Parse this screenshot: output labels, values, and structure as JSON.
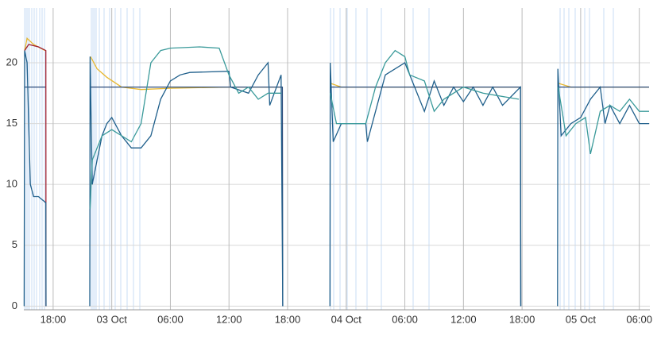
{
  "chart_data": {
    "type": "line",
    "xlim": [
      "02 Oct 15:00",
      "05 Oct 07:05"
    ],
    "xticks": [
      {
        "value": "02 Oct 18:00",
        "label": "18:00"
      },
      {
        "value": "03 Oct 00:00",
        "label": "03 Oct"
      },
      {
        "value": "03 Oct 06:00",
        "label": "06:00"
      },
      {
        "value": "03 Oct 12:00",
        "label": "12:00"
      },
      {
        "value": "03 Oct 18:00",
        "label": "18:00"
      },
      {
        "value": "04 Oct 00:00",
        "label": "04 Oct"
      },
      {
        "value": "04 Oct 06:00",
        "label": "06:00"
      },
      {
        "value": "04 Oct 12:00",
        "label": "12:00"
      },
      {
        "value": "04 Oct 18:00",
        "label": "18:00"
      },
      {
        "value": "05 Oct 00:00",
        "label": "05 Oct"
      },
      {
        "value": "05 Oct 06:00",
        "label": "06:00"
      }
    ],
    "ylim": [
      -0.3,
      24.5
    ],
    "yticks": [
      0,
      5,
      10,
      15,
      20
    ],
    "grid": true,
    "series": [
      {
        "color": "#e8b830",
        "x": [
          "02 Oct 15:05",
          "02 Oct 15:20",
          "02 Oct 16:00",
          "02 Oct 17:10",
          "02 Oct 17:12",
          "02 Oct 21:50",
          "02 Oct 22:30",
          "02 Oct 23:30",
          "03 Oct 01:00",
          "03 Oct 03:00",
          "03 Oct 06:00",
          "03 Oct 12:00",
          "03 Oct 17:20",
          "03 Oct 17:22",
          "03 Oct 22:25",
          "03 Oct 23:30",
          "04 Oct 06:00",
          "04 Oct 12:00",
          "04 Oct 17:40",
          "04 Oct 17:42",
          "04 Oct 21:45",
          "04 Oct 23:00",
          "05 Oct 07:00"
        ],
        "values": [
          21,
          22,
          21.5,
          21,
          null,
          20.5,
          19.5,
          18.8,
          18,
          17.8,
          17.9,
          18,
          18,
          null,
          18.3,
          18,
          18,
          18,
          18,
          null,
          18.3,
          18,
          18
        ]
      },
      {
        "color": "#2a4a7a",
        "x": [
          "02 Oct 15:05",
          "02 Oct 17:15",
          "02 Oct 17:17",
          "02 Oct 21:46",
          "03 Oct 17:28",
          "03 Oct 17:30",
          "03 Oct 17:32",
          "03 Oct 22:21",
          "04 Oct 17:50",
          "04 Oct 17:52",
          "04 Oct 17:54",
          "04 Oct 21:39",
          "05 Oct 07:00"
        ],
        "values": [
          18,
          18,
          null,
          18,
          18,
          0,
          null,
          18,
          18,
          0,
          null,
          18,
          18
        ]
      },
      {
        "color": "#a02030",
        "x": [
          "02 Oct 15:05",
          "02 Oct 15:30",
          "02 Oct 16:30",
          "02 Oct 17:15",
          "02 Oct 17:16"
        ],
        "values": [
          21,
          21.5,
          21.3,
          21,
          0
        ]
      },
      {
        "color": "#1f5f8b",
        "x": [
          "02 Oct 15:02",
          "02 Oct 15:05",
          "02 Oct 15:20",
          "02 Oct 15:40",
          "02 Oct 16:00",
          "02 Oct 16:30",
          "02 Oct 17:15",
          "02 Oct 17:16",
          "02 Oct 17:18",
          "02 Oct 21:45",
          "02 Oct 21:47",
          "02 Oct 22:00",
          "02 Oct 22:30",
          "02 Oct 23:00",
          "02 Oct 23:30",
          "03 Oct 00:00",
          "03 Oct 01:00",
          "03 Oct 02:00",
          "03 Oct 03:00",
          "03 Oct 04:00",
          "03 Oct 05:00",
          "03 Oct 06:00",
          "03 Oct 07:00",
          "03 Oct 08:00",
          "03 Oct 12:00",
          "03 Oct 12:10",
          "03 Oct 14:00",
          "03 Oct 15:00",
          "03 Oct 16:00",
          "03 Oct 16:10",
          "03 Oct 17:20",
          "03 Oct 17:30",
          "03 Oct 17:32",
          "03 Oct 22:20",
          "03 Oct 22:22",
          "03 Oct 22:40",
          "03 Oct 23:30",
          "04 Oct 00:00",
          "04 Oct 02:00",
          "04 Oct 02:10",
          "04 Oct 04:00",
          "04 Oct 06:00",
          "04 Oct 07:00",
          "04 Oct 08:00",
          "04 Oct 09:00",
          "04 Oct 10:00",
          "04 Oct 11:00",
          "04 Oct 12:00",
          "04 Oct 13:00",
          "04 Oct 14:00",
          "04 Oct 15:00",
          "04 Oct 16:00",
          "04 Oct 17:50",
          "04 Oct 17:52",
          "04 Oct 17:54",
          "04 Oct 21:38",
          "04 Oct 21:40",
          "04 Oct 22:00",
          "04 Oct 23:00",
          "05 Oct 00:00",
          "05 Oct 01:00",
          "05 Oct 02:00",
          "05 Oct 02:30",
          "05 Oct 03:00",
          "05 Oct 04:00",
          "05 Oct 05:00",
          "05 Oct 06:00",
          "05 Oct 07:00"
        ],
        "values": [
          0,
          21,
          20,
          10,
          9,
          9,
          8.5,
          0,
          null,
          0,
          20.5,
          10,
          12,
          14,
          15,
          15.5,
          14,
          13,
          13,
          14,
          17,
          18.5,
          19,
          19.2,
          19.3,
          18,
          17.5,
          19,
          20,
          16.5,
          19,
          0,
          null,
          0,
          20,
          13.5,
          15,
          15,
          15,
          13.5,
          19,
          20,
          18,
          16,
          18.5,
          16.5,
          18,
          16.8,
          18,
          16.5,
          18,
          16.5,
          18,
          0,
          null,
          0,
          19.5,
          14,
          15,
          15.5,
          17,
          18,
          15,
          16.5,
          15,
          16.5,
          15,
          15
        ]
      },
      {
        "color": "#3a9a9a",
        "x": [
          "02 Oct 21:47",
          "02 Oct 22:00",
          "02 Oct 23:00",
          "03 Oct 00:00",
          "03 Oct 02:00",
          "03 Oct 03:00",
          "03 Oct 04:00",
          "03 Oct 05:00",
          "03 Oct 06:00",
          "03 Oct 09:00",
          "03 Oct 11:00",
          "03 Oct 12:00",
          "03 Oct 13:00",
          "03 Oct 14:00",
          "03 Oct 15:00",
          "03 Oct 16:00",
          "03 Oct 17:20",
          "03 Oct 17:22",
          "03 Oct 22:22",
          "03 Oct 23:00",
          "04 Oct 02:00",
          "04 Oct 03:00",
          "04 Oct 04:00",
          "04 Oct 05:00",
          "04 Oct 06:00",
          "04 Oct 06:30",
          "04 Oct 08:00",
          "04 Oct 09:00",
          "04 Oct 10:00",
          "04 Oct 12:00",
          "04 Oct 14:00",
          "04 Oct 17:40",
          "04 Oct 17:42",
          "04 Oct 21:42",
          "04 Oct 22:30",
          "04 Oct 23:30",
          "05 Oct 00:30",
          "05 Oct 01:00",
          "05 Oct 02:00",
          "05 Oct 03:00",
          "05 Oct 04:00",
          "05 Oct 05:00",
          "05 Oct 06:00",
          "05 Oct 07:00"
        ],
        "values": [
          8,
          12,
          14,
          14.5,
          13.5,
          15,
          20,
          21,
          21.2,
          21.3,
          21.2,
          19,
          17.5,
          18,
          17,
          17.5,
          17.5,
          null,
          17.5,
          15,
          15,
          18,
          20,
          21,
          20.5,
          19,
          18.5,
          16,
          17,
          18,
          17.5,
          17,
          null,
          18,
          14,
          15,
          15.5,
          12.5,
          16,
          16.5,
          16,
          17,
          16,
          16
        ]
      }
    ]
  }
}
